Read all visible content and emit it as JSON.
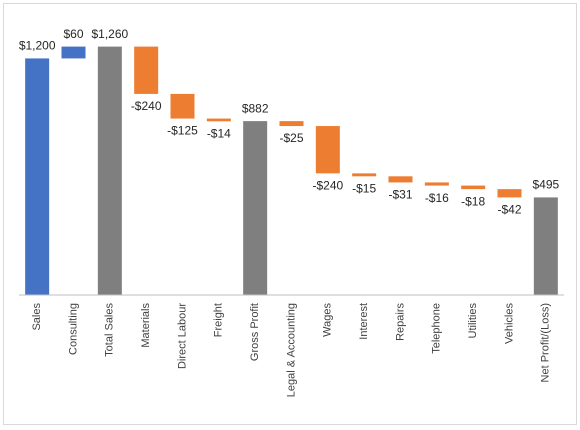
{
  "chart_data": {
    "type": "waterfall",
    "categories": [
      "Sales",
      "Consulting",
      "Total Sales",
      "Materials",
      "Direct Labour",
      "Freight",
      "Gross Profit",
      "Legal & Accounting",
      "Wages",
      "Interest",
      "Repairs",
      "Telephone",
      "Utilities",
      "Vehicles",
      "Net Profit/(Loss)"
    ],
    "values": [
      1200,
      60,
      1260,
      -240,
      -125,
      -14,
      882,
      -25,
      -240,
      -15,
      -31,
      -16,
      -18,
      -42,
      495
    ],
    "value_labels": [
      "$1,200",
      "$60",
      "$1,260",
      "-$240",
      "-$125",
      "-$14",
      "$882",
      "-$25",
      "-$240",
      "-$15",
      "-$31",
      "-$16",
      "-$18",
      "-$42",
      "$495"
    ],
    "totals": [
      false,
      false,
      true,
      false,
      false,
      false,
      true,
      false,
      false,
      false,
      false,
      false,
      false,
      false,
      true
    ],
    "colors": [
      "#4472c4",
      "#4472c4",
      "#7f7f7f",
      "#ed7d31",
      "#ed7d31",
      "#ed7d31",
      "#7f7f7f",
      "#ed7d31",
      "#ed7d31",
      "#ed7d31",
      "#ed7d31",
      "#ed7d31",
      "#ed7d31",
      "#ed7d31",
      "#7f7f7f"
    ],
    "ylim": [
      0,
      1400
    ]
  }
}
